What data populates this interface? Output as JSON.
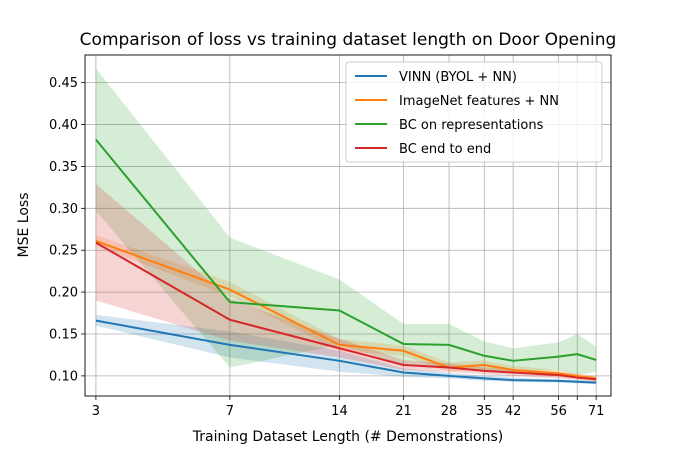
{
  "chart_data": {
    "type": "line",
    "title": "Comparison of loss vs training dataset length on Door Opening",
    "xlabel": "Training Dataset Length (# Demonstrations)",
    "ylabel": "MSE Loss",
    "x_scale": "log",
    "xlim": [
      2.8,
      78
    ],
    "ylim": [
      0.076,
      0.483
    ],
    "x_ticks": [
      3,
      7,
      14,
      21,
      28,
      35,
      42,
      56,
      63,
      71
    ],
    "x_tick_labels": [
      "3",
      "7",
      "14",
      "21",
      "28",
      "35",
      "42",
      "56",
      "",
      "71"
    ],
    "y_ticks": [
      0.1,
      0.15,
      0.2,
      0.25,
      0.3,
      0.35,
      0.4,
      0.45
    ],
    "y_tick_labels": [
      "0.10",
      "0.15",
      "0.20",
      "0.25",
      "0.30",
      "0.35",
      "0.40",
      "0.45"
    ],
    "grid": true,
    "legend_position": "top-right",
    "x": [
      3,
      7,
      14,
      21,
      28,
      35,
      42,
      56,
      63,
      71
    ],
    "series": [
      {
        "name": "VINN (BYOL + NN)",
        "color": "#1f77b4",
        "values": [
          0.166,
          0.137,
          0.118,
          0.104,
          0.1,
          0.097,
          0.095,
          0.094,
          0.093,
          0.092
        ],
        "lower": [
          0.16,
          0.122,
          0.105,
          0.099,
          0.097,
          0.094,
          0.093,
          0.092,
          0.091,
          0.09
        ],
        "upper": [
          0.173,
          0.153,
          0.13,
          0.109,
          0.104,
          0.1,
          0.098,
          0.096,
          0.095,
          0.094
        ]
      },
      {
        "name": "ImageNet features + NN",
        "color": "#ff7f0e",
        "values": [
          0.261,
          0.203,
          0.137,
          0.13,
          0.11,
          0.113,
          0.107,
          0.103,
          0.1,
          0.097
        ],
        "lower": [
          0.255,
          0.195,
          0.13,
          0.124,
          0.105,
          0.108,
          0.103,
          0.099,
          0.097,
          0.094
        ],
        "upper": [
          0.268,
          0.212,
          0.144,
          0.136,
          0.116,
          0.118,
          0.112,
          0.107,
          0.103,
          0.1
        ]
      },
      {
        "name": "BC on representations",
        "color": "#2ca02c",
        "values": [
          0.382,
          0.188,
          0.178,
          0.138,
          0.137,
          0.124,
          0.118,
          0.123,
          0.126,
          0.119
        ],
        "lower": [
          0.297,
          0.11,
          0.137,
          0.113,
          0.111,
          0.106,
          0.105,
          0.107,
          0.101,
          0.105
        ],
        "upper": [
          0.467,
          0.265,
          0.215,
          0.162,
          0.162,
          0.141,
          0.133,
          0.14,
          0.15,
          0.135
        ]
      },
      {
        "name": "BC end to end",
        "color": "#d62728",
        "values": [
          0.259,
          0.167,
          0.133,
          0.113,
          0.11,
          0.106,
          0.104,
          0.101,
          0.098,
          0.096
        ],
        "lower": [
          0.19,
          0.142,
          0.122,
          0.107,
          0.105,
          0.102,
          0.1,
          0.097,
          0.095,
          0.093
        ],
        "upper": [
          0.329,
          0.192,
          0.144,
          0.119,
          0.115,
          0.11,
          0.108,
          0.105,
          0.101,
          0.099
        ]
      }
    ]
  }
}
